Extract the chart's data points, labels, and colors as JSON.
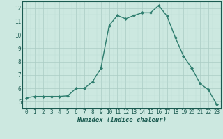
{
  "x": [
    0,
    1,
    2,
    3,
    4,
    5,
    6,
    7,
    8,
    9,
    10,
    11,
    12,
    13,
    14,
    15,
    16,
    17,
    18,
    19,
    20,
    21,
    22,
    23
  ],
  "y": [
    5.3,
    5.4,
    5.4,
    5.4,
    5.4,
    5.45,
    6.0,
    6.0,
    6.5,
    7.5,
    10.7,
    11.45,
    11.2,
    11.45,
    11.65,
    11.65,
    12.2,
    11.4,
    9.8,
    8.4,
    7.5,
    6.35,
    5.9,
    4.8
  ],
  "line_color": "#2e7d6e",
  "marker": "D",
  "marker_size": 2.0,
  "bg_color": "#cce8e0",
  "grid_major_color": "#aaccc4",
  "grid_minor_color": "#bbddd6",
  "xlabel": "Humidex (Indice chaleur)",
  "tick_color": "#1a5a50",
  "ylim": [
    4.5,
    12.5
  ],
  "xlim": [
    -0.5,
    23.5
  ],
  "yticks": [
    5,
    6,
    7,
    8,
    9,
    10,
    11,
    12
  ],
  "xticks": [
    0,
    1,
    2,
    3,
    4,
    5,
    6,
    7,
    8,
    9,
    10,
    11,
    12,
    13,
    14,
    15,
    16,
    17,
    18,
    19,
    20,
    21,
    22,
    23
  ],
  "line_width": 1.0
}
